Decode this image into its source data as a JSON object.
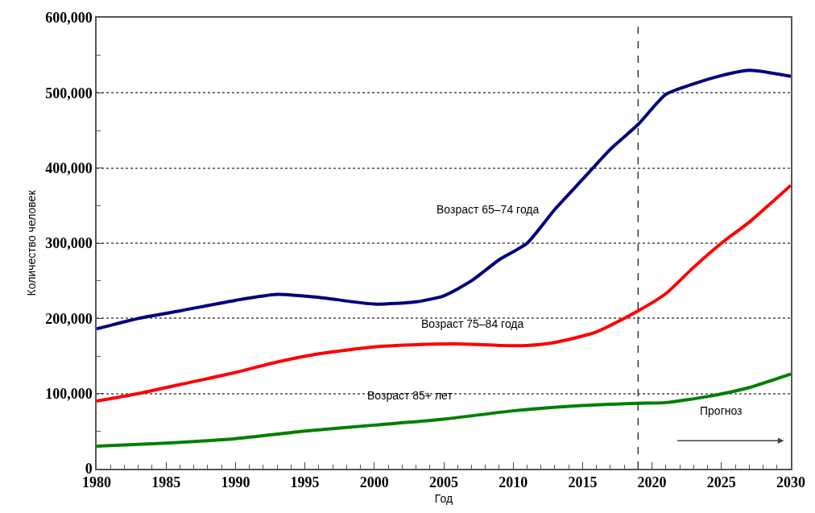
{
  "chart_data": {
    "type": "line",
    "xlabel": "Год",
    "ylabel": "Количество человек",
    "xlim": [
      1980,
      2030
    ],
    "xticks": [
      1980,
      1985,
      1990,
      1995,
      2000,
      2005,
      2010,
      2015,
      2020,
      2025,
      2030
    ],
    "ylim": [
      0,
      600000
    ],
    "yticks": [
      {
        "value": 0,
        "label": "0"
      },
      {
        "value": 100000,
        "label": "100,000"
      },
      {
        "value": 200000,
        "label": "200,000"
      },
      {
        "value": 300000,
        "label": "300,000"
      },
      {
        "value": 400000,
        "label": "400,000"
      },
      {
        "value": 500000,
        "label": "500,000"
      },
      {
        "value": 600000,
        "label": "600,000"
      }
    ],
    "grid": "y",
    "marker": "none",
    "line_style": "solid",
    "series": [
      {
        "color": "#00007f",
        "x": [
          1980,
          1983,
          1986,
          1990,
          1993,
          1996,
          2000,
          2003,
          2005,
          2007,
          2009,
          2011,
          2013,
          2015,
          2017,
          2019,
          2021,
          2023,
          2025,
          2027,
          2030
        ],
        "values": [
          186000,
          200000,
          210000,
          224000,
          232000,
          228000,
          219000,
          222000,
          230000,
          250000,
          278000,
          300000,
          345000,
          385000,
          425000,
          458000,
          498000,
          512000,
          523000,
          530000,
          522000
        ]
      },
      {
        "color": "#ff0000",
        "x": [
          1980,
          1983,
          1986,
          1990,
          1993,
          1996,
          2000,
          2003,
          2006,
          2009,
          2011,
          2013,
          2016,
          2019,
          2021,
          2023,
          2025,
          2027,
          2030
        ],
        "values": [
          90000,
          100000,
          112000,
          128000,
          142000,
          153000,
          162000,
          165000,
          166000,
          164000,
          164000,
          168000,
          182000,
          210000,
          233000,
          268000,
          300000,
          328000,
          377000
        ]
      },
      {
        "color": "#007f00",
        "x": [
          1980,
          1985,
          1990,
          1995,
          2000,
          2005,
          2010,
          2015,
          2019,
          2021,
          2024,
          2027,
          2030
        ],
        "values": [
          30000,
          34000,
          40000,
          50000,
          58000,
          66000,
          77000,
          84000,
          87000,
          88000,
          96000,
          108000,
          126000
        ]
      }
    ],
    "ref_lines": [
      {
        "axis": "x",
        "value": 2019,
        "color": "#333333",
        "line_style": "dashed"
      }
    ],
    "annotations": [
      "Возраст 65–74 года",
      "Возраст 75–84 года",
      "Возраст 85+ лет",
      "Прогноз"
    ]
  }
}
